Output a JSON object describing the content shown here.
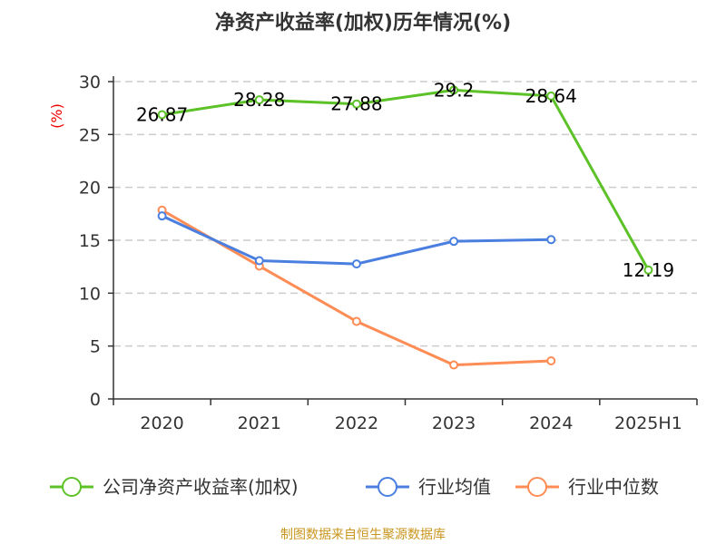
{
  "chart_data": {
    "type": "line",
    "title": "净资产收益率(加权)历年情况(%)",
    "ylabel": "(%)",
    "categories": [
      "2020",
      "2021",
      "2022",
      "2023",
      "2024",
      "2025H1"
    ],
    "ylim": [
      0,
      30
    ],
    "yticks": [
      0,
      5,
      10,
      15,
      20,
      25,
      30
    ],
    "grid": true,
    "legend_position": "bottom",
    "series": [
      {
        "name": "公司净资产收益率(加权)",
        "color": "#5cc227",
        "values": [
          26.87,
          28.28,
          27.88,
          29.2,
          28.64,
          12.19
        ],
        "labels": [
          "26.87",
          "28.28",
          "27.88",
          "29.2",
          "28.64",
          "12.19"
        ]
      },
      {
        "name": "行业均值",
        "color": "#4a7fe0",
        "values": [
          17.3,
          13.07,
          12.76,
          14.9,
          15.06,
          null
        ]
      },
      {
        "name": "行业中位数",
        "color": "#fd8c55",
        "values": [
          17.85,
          12.56,
          7.33,
          3.21,
          3.6,
          null
        ]
      }
    ]
  },
  "source": "制图数据来自恒生聚源数据库"
}
